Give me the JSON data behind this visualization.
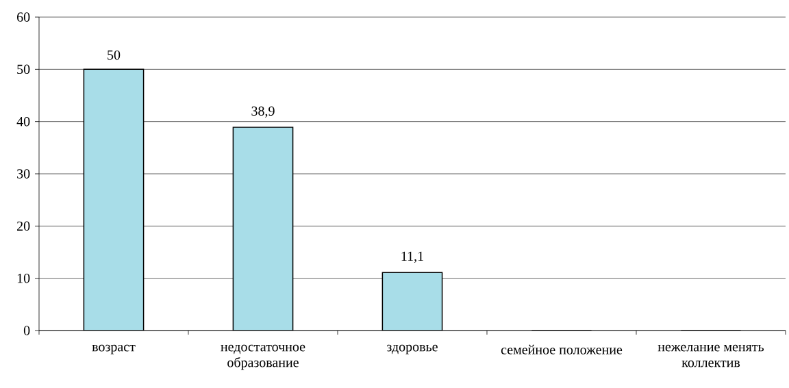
{
  "chart_data": {
    "type": "bar",
    "categories": [
      "возраст",
      "недостаточное образование",
      "здоровье",
      "семейное положение",
      "нежелание менять коллектив"
    ],
    "values": [
      50,
      38.9,
      11.1,
      0,
      0
    ],
    "value_labels": [
      "50",
      "38,9",
      "11,1",
      null,
      null
    ],
    "color": "#a8dde8",
    "ylim": [
      0,
      60
    ],
    "yticks": [
      0,
      10,
      20,
      30,
      40,
      50,
      60
    ],
    "grid": "y"
  }
}
